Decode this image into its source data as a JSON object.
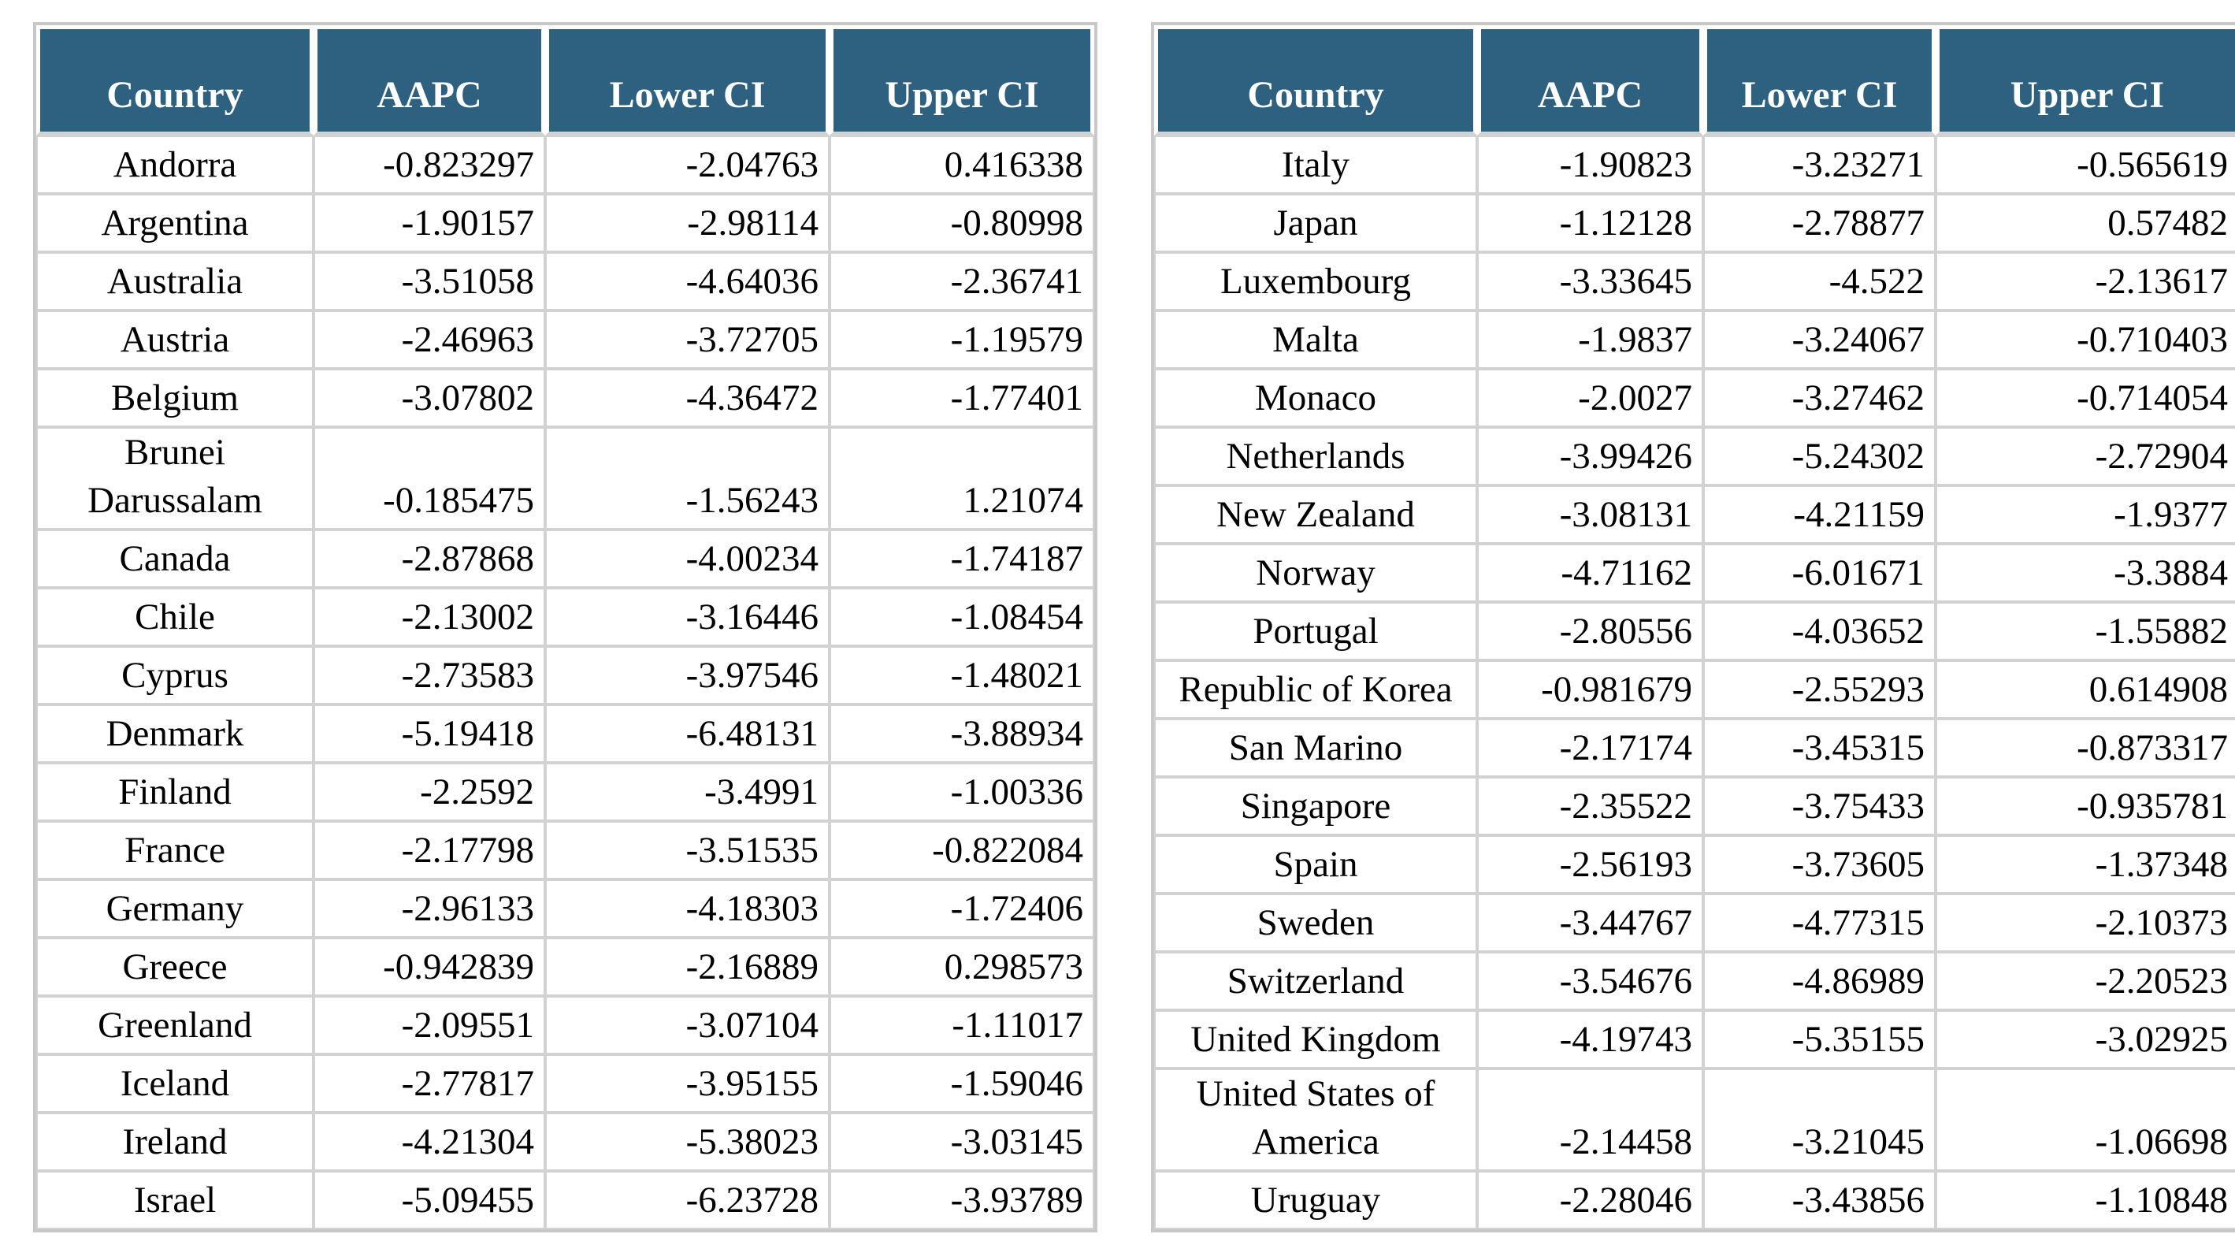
{
  "colors": {
    "header_bg": "#2e617f",
    "header_text": "#ffffff",
    "grid": "#d2d2d2",
    "frame": "#c8c8c8",
    "cell_text": "#000000",
    "page_bg": "#ffffff"
  },
  "columns": [
    "Country",
    "AAPC",
    "Lower CI",
    "Upper CI"
  ],
  "tables": {
    "left": {
      "rows": [
        [
          "Andorra",
          "-0.823297",
          "-2.04763",
          "0.416338"
        ],
        [
          "Argentina",
          "-1.90157",
          "-2.98114",
          "-0.80998"
        ],
        [
          "Australia",
          "-3.51058",
          "-4.64036",
          "-2.36741"
        ],
        [
          "Austria",
          "-2.46963",
          "-3.72705",
          "-1.19579"
        ],
        [
          "Belgium",
          "-3.07802",
          "-4.36472",
          "-1.77401"
        ],
        [
          "Brunei Darussalam",
          "-0.185475",
          "-1.56243",
          "1.21074"
        ],
        [
          "Canada",
          "-2.87868",
          "-4.00234",
          "-1.74187"
        ],
        [
          "Chile",
          "-2.13002",
          "-3.16446",
          "-1.08454"
        ],
        [
          "Cyprus",
          "-2.73583",
          "-3.97546",
          "-1.48021"
        ],
        [
          "Denmark",
          "-5.19418",
          "-6.48131",
          "-3.88934"
        ],
        [
          "Finland",
          "-2.2592",
          "-3.4991",
          "-1.00336"
        ],
        [
          "France",
          "-2.17798",
          "-3.51535",
          "-0.822084"
        ],
        [
          "Germany",
          "-2.96133",
          "-4.18303",
          "-1.72406"
        ],
        [
          "Greece",
          "-0.942839",
          "-2.16889",
          "0.298573"
        ],
        [
          "Greenland",
          "-2.09551",
          "-3.07104",
          "-1.11017"
        ],
        [
          "Iceland",
          "-2.77817",
          "-3.95155",
          "-1.59046"
        ],
        [
          "Ireland",
          "-4.21304",
          "-5.38023",
          "-3.03145"
        ],
        [
          "Israel",
          "-5.09455",
          "-6.23728",
          "-3.93789"
        ]
      ]
    },
    "right": {
      "rows": [
        [
          "Italy",
          "-1.90823",
          "-3.23271",
          "-0.565619"
        ],
        [
          "Japan",
          "-1.12128",
          "-2.78877",
          "0.57482"
        ],
        [
          "Luxembourg",
          "-3.33645",
          "-4.522",
          "-2.13617"
        ],
        [
          "Malta",
          "-1.9837",
          "-3.24067",
          "-0.710403"
        ],
        [
          "Monaco",
          "-2.0027",
          "-3.27462",
          "-0.714054"
        ],
        [
          "Netherlands",
          "-3.99426",
          "-5.24302",
          "-2.72904"
        ],
        [
          "New Zealand",
          "-3.08131",
          "-4.21159",
          "-1.9377"
        ],
        [
          "Norway",
          "-4.71162",
          "-6.01671",
          "-3.3884"
        ],
        [
          "Portugal",
          "-2.80556",
          "-4.03652",
          "-1.55882"
        ],
        [
          "Republic of Korea",
          "-0.981679",
          "-2.55293",
          "0.614908"
        ],
        [
          "San Marino",
          "-2.17174",
          "-3.45315",
          "-0.873317"
        ],
        [
          "Singapore",
          "-2.35522",
          "-3.75433",
          "-0.935781"
        ],
        [
          "Spain",
          "-2.56193",
          "-3.73605",
          "-1.37348"
        ],
        [
          "Sweden",
          "-3.44767",
          "-4.77315",
          "-2.10373"
        ],
        [
          "Switzerland",
          "-3.54676",
          "-4.86989",
          "-2.20523"
        ],
        [
          "United Kingdom",
          "-4.19743",
          "-5.35155",
          "-3.02925"
        ],
        [
          "United States of America",
          "-2.14458",
          "-3.21045",
          "-1.06698"
        ],
        [
          "Uruguay",
          "-2.28046",
          "-3.43856",
          "-1.10848"
        ]
      ]
    }
  }
}
